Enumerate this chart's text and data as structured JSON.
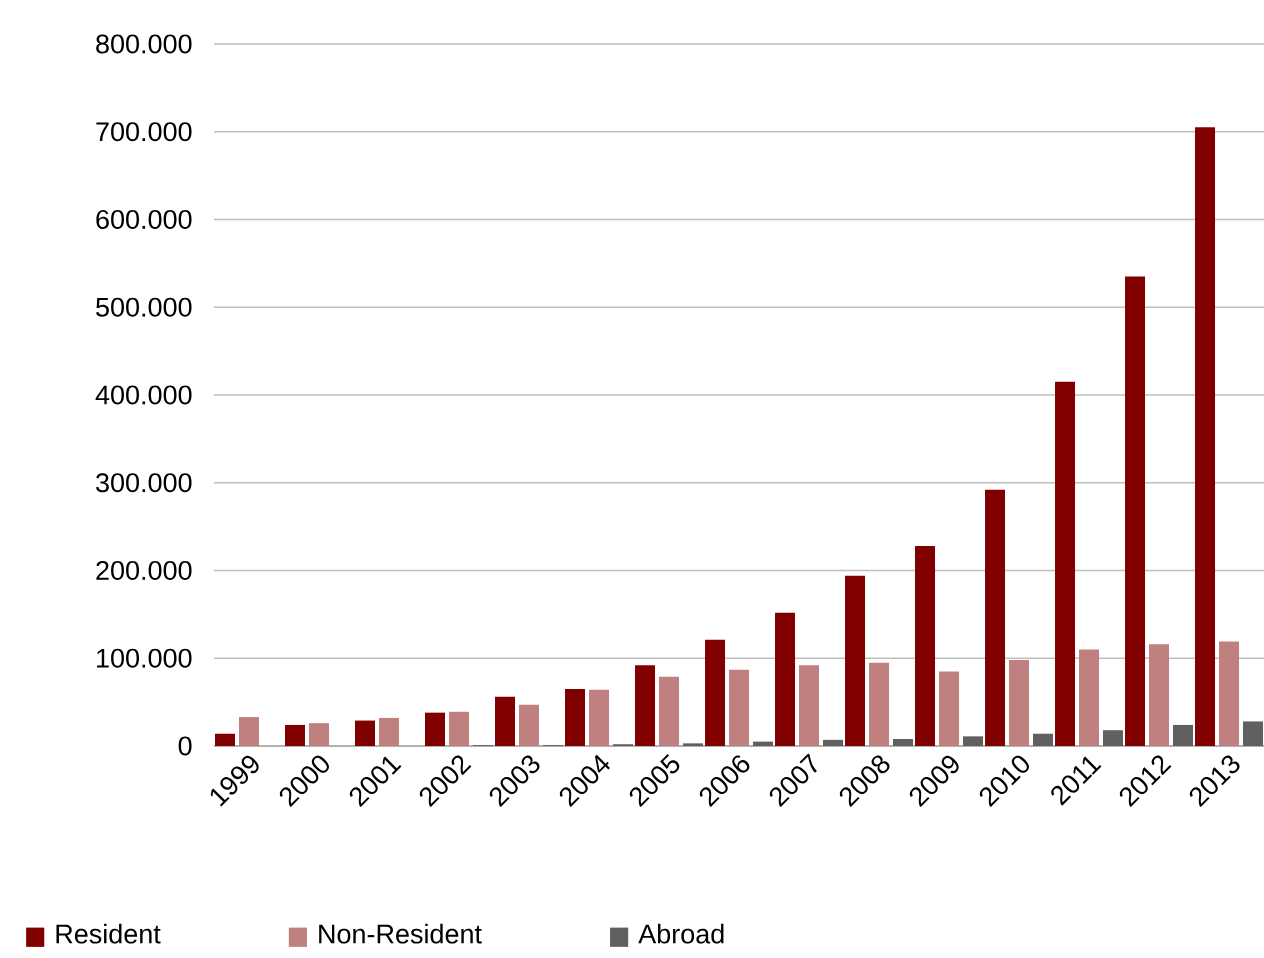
{
  "chart_data": {
    "type": "bar",
    "categories": [
      "1999",
      "2000",
      "2001",
      "2002",
      "2003",
      "2004",
      "2005",
      "2006",
      "2007",
      "2008",
      "2009",
      "2010",
      "2011",
      "2012",
      "2013"
    ],
    "series": [
      {
        "name": "Resident",
        "color": "#800000",
        "values": [
          14000,
          24000,
          29000,
          38000,
          56000,
          65000,
          92000,
          121000,
          152000,
          194000,
          228000,
          292000,
          415000,
          535000,
          705000
        ]
      },
      {
        "name": "Non-Resident",
        "color": "#c08080",
        "values": [
          33000,
          26000,
          32000,
          39000,
          47000,
          64000,
          79000,
          87000,
          92000,
          95000,
          85000,
          98000,
          110000,
          116000,
          119000
        ]
      },
      {
        "name": "Abroad",
        "color": "#606060",
        "values": [
          0,
          0,
          0,
          1000,
          1000,
          2000,
          3000,
          5000,
          7000,
          8000,
          11000,
          14000,
          18000,
          24000,
          28000
        ]
      }
    ],
    "ylim": [
      0,
      800000
    ],
    "yticks": [
      0,
      {
        "value": 100000,
        "label": "100.000"
      },
      {
        "value": 200000,
        "label": "200.000"
      },
      {
        "value": 300000,
        "label": "300.000"
      },
      {
        "value": 400000,
        "label": "400.000"
      },
      {
        "value": 500000,
        "label": "500.000"
      },
      {
        "value": 600000,
        "label": "600.000"
      },
      {
        "value": 700000,
        "label": "700.000"
      },
      {
        "value": 800000,
        "label": "800.000"
      }
    ],
    "grid": "y",
    "legend": "bottom"
  }
}
